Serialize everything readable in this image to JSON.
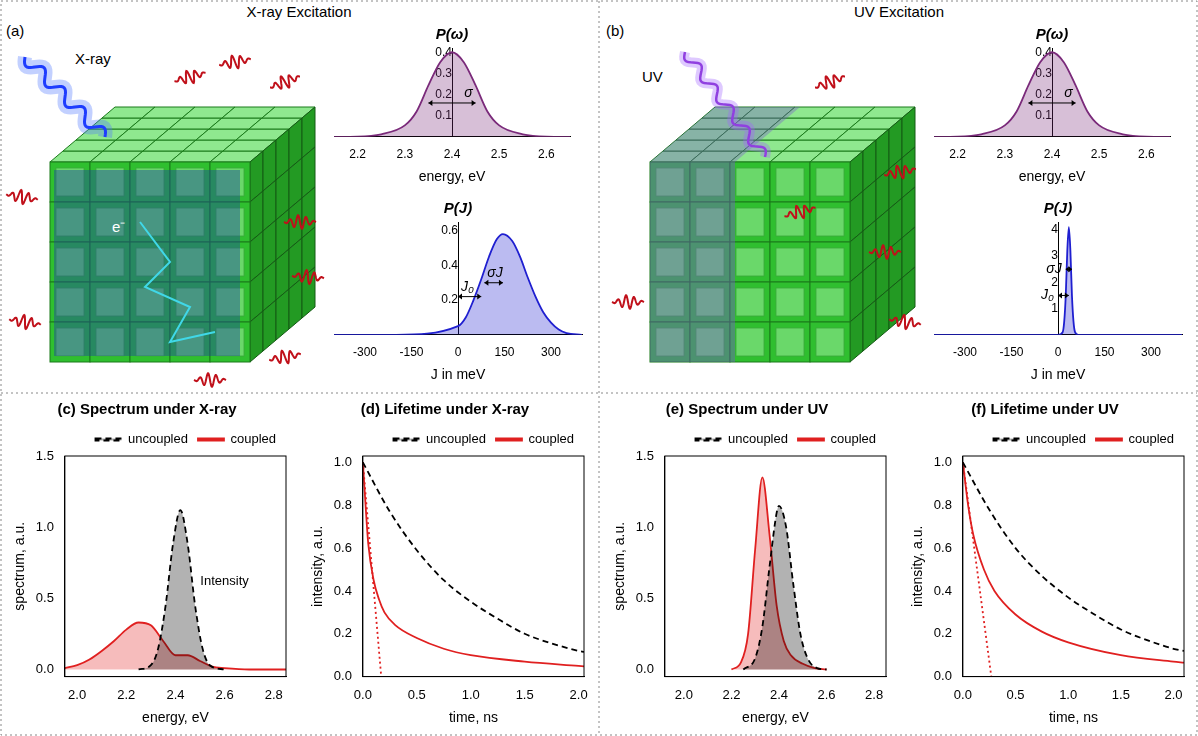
{
  "headers": [
    "X-ray Excitation",
    "UV Excitation"
  ],
  "panels": [
    {
      "letter": "(a)",
      "beam": "X-ray",
      "particle": "e⁻"
    },
    {
      "letter": "(b)",
      "beam": "UV"
    }
  ],
  "chart_data": [
    {
      "type": "line",
      "title": "P(ω)",
      "x_label": "energy, eV",
      "xlim": [
        2.15,
        2.65
      ],
      "xticks": [
        2.2,
        2.3,
        2.4,
        2.5,
        2.6
      ],
      "ylim": [
        0,
        0.42
      ],
      "yticks": [
        0.1,
        0.2,
        0.3,
        0.4
      ],
      "yaxis_x": 2.4,
      "grid": false,
      "annotations": [
        {
          "text": "σ",
          "x": [
            2.35,
            2.45
          ],
          "y": 0.16
        }
      ],
      "series": [
        {
          "type": "area",
          "color": "#7a2a7a",
          "x": [
            2.15,
            2.2,
            2.25,
            2.3,
            2.325,
            2.35,
            2.375,
            2.4,
            2.425,
            2.45,
            2.475,
            2.5,
            2.55,
            2.6,
            2.65
          ],
          "values": [
            0,
            0.001,
            0.012,
            0.054,
            0.12,
            0.243,
            0.353,
            0.4,
            0.353,
            0.243,
            0.12,
            0.054,
            0.012,
            0.001,
            0
          ]
        }
      ]
    },
    {
      "type": "line",
      "title": "P(J)",
      "x_label": "J in meV",
      "xlim": [
        -400,
        400
      ],
      "xticks": [
        -300,
        -150,
        0,
        150,
        300
      ],
      "ylim": [
        0,
        0.65
      ],
      "yticks": [
        0.2,
        0.4,
        0.6
      ],
      "yaxis_x": 0,
      "grid": false,
      "annotations": [
        {
          "text": "J₀",
          "x": [
            0,
            75
          ],
          "y": 0.22
        },
        {
          "text": "σJ",
          "x": [
            85,
            145
          ],
          "y": 0.3
        }
      ],
      "series": [
        {
          "type": "area",
          "color": "#1f1fd0",
          "x": [
            -400,
            -200,
            0,
            25,
            50,
            75,
            100,
            125,
            145,
            175,
            200,
            225,
            250,
            275,
            300,
            325,
            350,
            400
          ],
          "values": [
            0,
            0,
            0.05,
            0.1,
            0.2,
            0.32,
            0.45,
            0.55,
            0.58,
            0.54,
            0.45,
            0.33,
            0.22,
            0.13,
            0.07,
            0.03,
            0.01,
            0
          ]
        }
      ]
    },
    {
      "type": "line",
      "title": "P(ω)",
      "x_label": "energy, eV",
      "xlim": [
        2.15,
        2.65
      ],
      "xticks": [
        2.2,
        2.3,
        2.4,
        2.5,
        2.6
      ],
      "ylim": [
        0,
        0.42
      ],
      "yticks": [
        0.1,
        0.2,
        0.3,
        0.4
      ],
      "yaxis_x": 2.4,
      "grid": false,
      "annotations": [
        {
          "text": "σ",
          "x": [
            2.35,
            2.45
          ],
          "y": 0.16
        }
      ],
      "series": [
        {
          "type": "area",
          "color": "#7a2a7a",
          "x": [
            2.15,
            2.2,
            2.25,
            2.3,
            2.325,
            2.35,
            2.375,
            2.4,
            2.425,
            2.45,
            2.475,
            2.5,
            2.55,
            2.6,
            2.65
          ],
          "values": [
            0,
            0.001,
            0.012,
            0.054,
            0.12,
            0.243,
            0.353,
            0.4,
            0.353,
            0.243,
            0.12,
            0.054,
            0.012,
            0.001,
            0
          ]
        }
      ]
    },
    {
      "type": "line",
      "title": "P(J)",
      "x_label": "J in meV",
      "xlim": [
        -400,
        400
      ],
      "xticks": [
        -300,
        -150,
        0,
        150,
        300
      ],
      "ylim": [
        0,
        4.3
      ],
      "yticks": [
        1,
        2,
        3,
        4
      ],
      "yaxis_x": 0,
      "grid": false,
      "annotations": [
        {
          "text": "σJ",
          "x": [
            25,
            45
          ],
          "y": 2.5
        },
        {
          "text": "J₀",
          "x": [
            0,
            35
          ],
          "y": 1.5
        }
      ],
      "series": [
        {
          "type": "area",
          "color": "#1f1fd0",
          "x": [
            -400,
            -200,
            0,
            15,
            20,
            25,
            30,
            35,
            40,
            45,
            50,
            55,
            65,
            200,
            400
          ],
          "values": [
            0,
            0,
            0,
            0.1,
            0.5,
            1.5,
            3.2,
            4.1,
            3.2,
            1.5,
            0.5,
            0.1,
            0,
            0,
            0
          ]
        }
      ]
    },
    {
      "type": "line",
      "title": "(c) Spectrum under X-ray",
      "x_label": "energy, eV",
      "y_label": "spectrum, a.u.",
      "xlim": [
        1.95,
        2.85
      ],
      "xticks": [
        {
          "value": 2,
          "label": "2.0"
        },
        2.2,
        2.4,
        2.6,
        2.8
      ],
      "ylim": [
        -0.05,
        1.5
      ],
      "yticks": [
        {
          "value": 0,
          "label": "0.0"
        },
        0.5,
        {
          "value": 1,
          "label": "1.0"
        },
        1.5
      ],
      "grid": false,
      "legend": "top",
      "annotations": [
        {
          "text": "Intensity",
          "x": 2.6,
          "y": 0.62
        }
      ],
      "series": [
        {
          "name": "uncoupled",
          "type": "area",
          "color": "#000000",
          "line_style": "dashed",
          "x": [
            2.25,
            2.3,
            2.33,
            2.36,
            2.39,
            2.42,
            2.45,
            2.48,
            2.51,
            2.54,
            2.6
          ],
          "values": [
            0,
            0.03,
            0.15,
            0.45,
            0.88,
            1.12,
            0.88,
            0.45,
            0.15,
            0.03,
            0
          ]
        },
        {
          "name": "coupled",
          "type": "area",
          "color": "#e02020",
          "line_style": "solid",
          "x": [
            1.95,
            2.0,
            2.05,
            2.1,
            2.15,
            2.2,
            2.25,
            2.3,
            2.35,
            2.4,
            2.45,
            2.5,
            2.55,
            2.6,
            2.7,
            2.85
          ],
          "values": [
            0.01,
            0.03,
            0.07,
            0.13,
            0.2,
            0.28,
            0.33,
            0.31,
            0.2,
            0.1,
            0.1,
            0.06,
            0.02,
            0.01,
            0,
            0
          ]
        }
      ]
    },
    {
      "type": "line",
      "title": "(d) Lifetime under X-ray",
      "x_label": "time, ns",
      "y_label": "intensity, a.u.",
      "xlim": [
        0,
        2.05
      ],
      "xticks": [
        {
          "value": 0,
          "label": "0.0"
        },
        0.5,
        {
          "value": 1,
          "label": "1.0"
        },
        1.5,
        {
          "value": 2,
          "label": "2.0"
        }
      ],
      "ylim": [
        0,
        1.03
      ],
      "yticks": [
        {
          "value": 0,
          "label": "0.0"
        },
        0.2,
        0.4,
        0.6,
        0.8,
        {
          "value": 1,
          "label": "1.0"
        }
      ],
      "grid": false,
      "legend": "top",
      "series": [
        {
          "name": "uncoupled",
          "type": "line",
          "color": "#000000",
          "line_style": "dashed",
          "x": [
            0,
            0.25,
            0.5,
            0.75,
            1,
            1.25,
            1.5,
            1.75,
            2,
            2.05
          ],
          "values": [
            1,
            0.77,
            0.59,
            0.45,
            0.35,
            0.27,
            0.2,
            0.155,
            0.12,
            0.115
          ]
        },
        {
          "name": "coupled",
          "type": "line",
          "color": "#e02020",
          "line_style": "solid",
          "x": [
            0,
            0.025,
            0.05,
            0.1,
            0.15,
            0.2,
            0.3,
            0.5,
            0.75,
            1,
            1.5,
            2,
            2.05
          ],
          "values": [
            1,
            0.8,
            0.62,
            0.45,
            0.36,
            0.3,
            0.24,
            0.18,
            0.13,
            0.1,
            0.07,
            0.05,
            0.048
          ]
        },
        {
          "type": "line",
          "color": "#e02020",
          "line_style": "dotted",
          "x": [
            0,
            0.17
          ],
          "values": [
            1,
            0
          ]
        }
      ]
    },
    {
      "type": "line",
      "title": "(e) Spectrum under UV",
      "x_label": "energy, eV",
      "y_label": "spectrum, a.u.",
      "xlim": [
        1.92,
        2.85
      ],
      "xticks": [
        {
          "value": 2,
          "label": "2.0"
        },
        2.2,
        2.4,
        2.6,
        2.8
      ],
      "ylim": [
        -0.05,
        1.5
      ],
      "yticks": [
        {
          "value": 0,
          "label": "0.0"
        },
        0.5,
        {
          "value": 1,
          "label": "1.0"
        },
        1.5
      ],
      "grid": false,
      "legend": "top",
      "series": [
        {
          "name": "uncoupled",
          "type": "area",
          "color": "#000000",
          "line_style": "dashed",
          "x": [
            2.25,
            2.3,
            2.33,
            2.36,
            2.39,
            2.4,
            2.43,
            2.46,
            2.49,
            2.52,
            2.56,
            2.6
          ],
          "values": [
            0,
            0.08,
            0.3,
            0.72,
            1.1,
            1.15,
            1.0,
            0.6,
            0.25,
            0.08,
            0.01,
            0
          ]
        },
        {
          "name": "coupled",
          "type": "area",
          "color": "#e02020",
          "line_style": "solid",
          "x": [
            2.2,
            2.24,
            2.27,
            2.3,
            2.33,
            2.36,
            2.39,
            2.42,
            2.45,
            2.5,
            2.55,
            2.6
          ],
          "values": [
            0,
            0.05,
            0.25,
            0.85,
            1.35,
            0.95,
            0.45,
            0.2,
            0.1,
            0.04,
            0.01,
            0
          ]
        }
      ]
    },
    {
      "type": "line",
      "title": "(f) Lifetime under UV",
      "x_label": "time, ns",
      "y_label": "intensity, a.u.",
      "xlim": [
        0,
        2.1
      ],
      "xticks": [
        {
          "value": 0,
          "label": "0.0"
        },
        0.5,
        {
          "value": 1,
          "label": "1.0"
        },
        1.5,
        {
          "value": 2,
          "label": "2.0"
        }
      ],
      "ylim": [
        0,
        1.03
      ],
      "yticks": [
        {
          "value": 0,
          "label": "0.0"
        },
        0.2,
        0.4,
        0.6,
        0.8,
        {
          "value": 1,
          "label": "1.0"
        }
      ],
      "grid": false,
      "legend": "top",
      "series": [
        {
          "name": "uncoupled",
          "type": "line",
          "color": "#000000",
          "line_style": "dashed",
          "x": [
            0,
            0.25,
            0.5,
            0.75,
            1,
            1.25,
            1.5,
            1.75,
            2,
            2.1
          ],
          "values": [
            1,
            0.78,
            0.6,
            0.47,
            0.37,
            0.29,
            0.22,
            0.17,
            0.13,
            0.12
          ]
        },
        {
          "name": "coupled",
          "type": "line",
          "color": "#e02020",
          "line_style": "solid",
          "x": [
            0,
            0.05,
            0.1,
            0.2,
            0.3,
            0.5,
            0.75,
            1,
            1.5,
            2,
            2.1
          ],
          "values": [
            1,
            0.8,
            0.66,
            0.5,
            0.4,
            0.29,
            0.21,
            0.16,
            0.1,
            0.07,
            0.065
          ]
        },
        {
          "type": "line",
          "color": "#e02020",
          "line_style": "dotted",
          "x": [
            0,
            0.27
          ],
          "values": [
            1,
            0
          ]
        }
      ]
    }
  ]
}
